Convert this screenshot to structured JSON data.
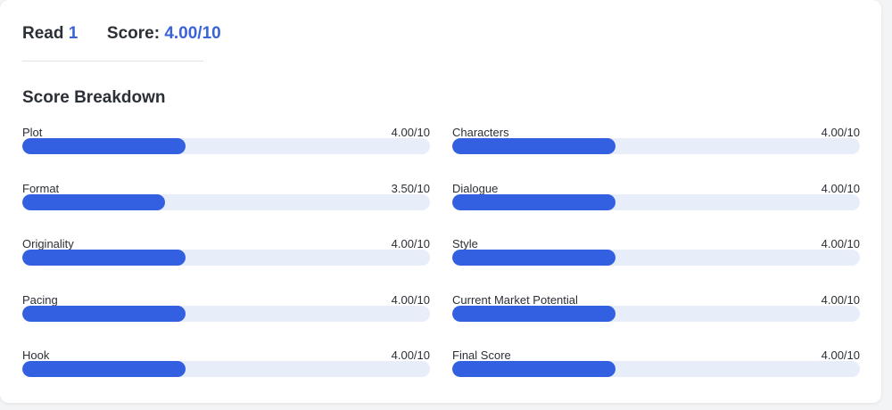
{
  "summary": {
    "read_label": "Read",
    "read_value": "1",
    "score_label": "Score:",
    "score_value": "4.00/10"
  },
  "breakdown": {
    "title": "Score Breakdown",
    "left": [
      {
        "label": "Plot",
        "value_text": "4.00/10",
        "value": 4.0,
        "max": 10
      },
      {
        "label": "Format",
        "value_text": "3.50/10",
        "value": 3.5,
        "max": 10
      },
      {
        "label": "Originality",
        "value_text": "4.00/10",
        "value": 4.0,
        "max": 10
      },
      {
        "label": "Pacing",
        "value_text": "4.00/10",
        "value": 4.0,
        "max": 10
      },
      {
        "label": "Hook",
        "value_text": "4.00/10",
        "value": 4.0,
        "max": 10
      }
    ],
    "right": [
      {
        "label": "Characters",
        "value_text": "4.00/10",
        "value": 4.0,
        "max": 10
      },
      {
        "label": "Dialogue",
        "value_text": "4.00/10",
        "value": 4.0,
        "max": 10
      },
      {
        "label": "Style",
        "value_text": "4.00/10",
        "value": 4.0,
        "max": 10
      },
      {
        "label": "Current Market Potential",
        "value_text": "4.00/10",
        "value": 4.0,
        "max": 10
      },
      {
        "label": "Final Score",
        "value_text": "4.00/10",
        "value": 4.0,
        "max": 10
      }
    ]
  },
  "colors": {
    "accent": "#3260e0",
    "track": "#e8edfa"
  }
}
